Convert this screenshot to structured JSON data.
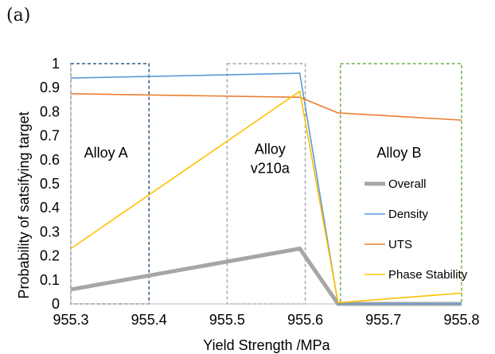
{
  "panel_label": "(a)",
  "chart_data": {
    "type": "line",
    "title": "",
    "xlabel": "Yield Strength /MPa",
    "ylabel": "Probability of satsifying target",
    "xlim": [
      955.3,
      955.8
    ],
    "ylim": [
      0,
      1
    ],
    "xticks": [
      "955.3",
      "955.4",
      "955.5",
      "955.6",
      "955.7",
      "955.8"
    ],
    "yticks": [
      "0",
      "0.1",
      "0.2",
      "0.3",
      "0.4",
      "0.5",
      "0.6",
      "0.7",
      "0.8",
      "0.9",
      "1"
    ],
    "grid": false,
    "legend_position": "right",
    "series": [
      {
        "name": "Overall",
        "color": "#a6a6a6",
        "width": "thick",
        "x": [
          955.3,
          955.593,
          955.642,
          955.8
        ],
        "y": [
          0.06,
          0.23,
          0.0,
          0.0
        ]
      },
      {
        "name": "Density",
        "color": "#5b9bd5",
        "width": "thin",
        "x": [
          955.3,
          955.593,
          955.642,
          955.8
        ],
        "y": [
          0.94,
          0.96,
          0.0,
          0.0
        ]
      },
      {
        "name": "UTS",
        "color": "#ed7d31",
        "width": "thin",
        "x": [
          955.3,
          955.593,
          955.642,
          955.8
        ],
        "y": [
          0.875,
          0.86,
          0.795,
          0.765
        ]
      },
      {
        "name": "Phase Stability",
        "color": "#ffc000",
        "width": "thin",
        "x": [
          955.3,
          955.593,
          955.642,
          955.8
        ],
        "y": [
          0.23,
          0.885,
          0.005,
          0.045
        ]
      }
    ],
    "regions": [
      {
        "label": "Alloy A",
        "x0": 955.3,
        "x1": 955.4,
        "color": "#2e5a87"
      },
      {
        "label": "Alloy v210a",
        "x0": 955.5,
        "x1": 955.6,
        "color": "#a6a6a6"
      },
      {
        "label": "Alloy B",
        "x0": 955.645,
        "x1": 955.8,
        "color": "#70ad47"
      }
    ],
    "annotations": [
      {
        "lines": [
          "Alloy A"
        ],
        "x": 955.345,
        "y": 0.61
      },
      {
        "lines": [
          "Alloy",
          "v210a"
        ],
        "x": 955.555,
        "y": 0.625
      },
      {
        "lines": [
          "Alloy B"
        ],
        "x": 955.72,
        "y": 0.61
      }
    ]
  }
}
